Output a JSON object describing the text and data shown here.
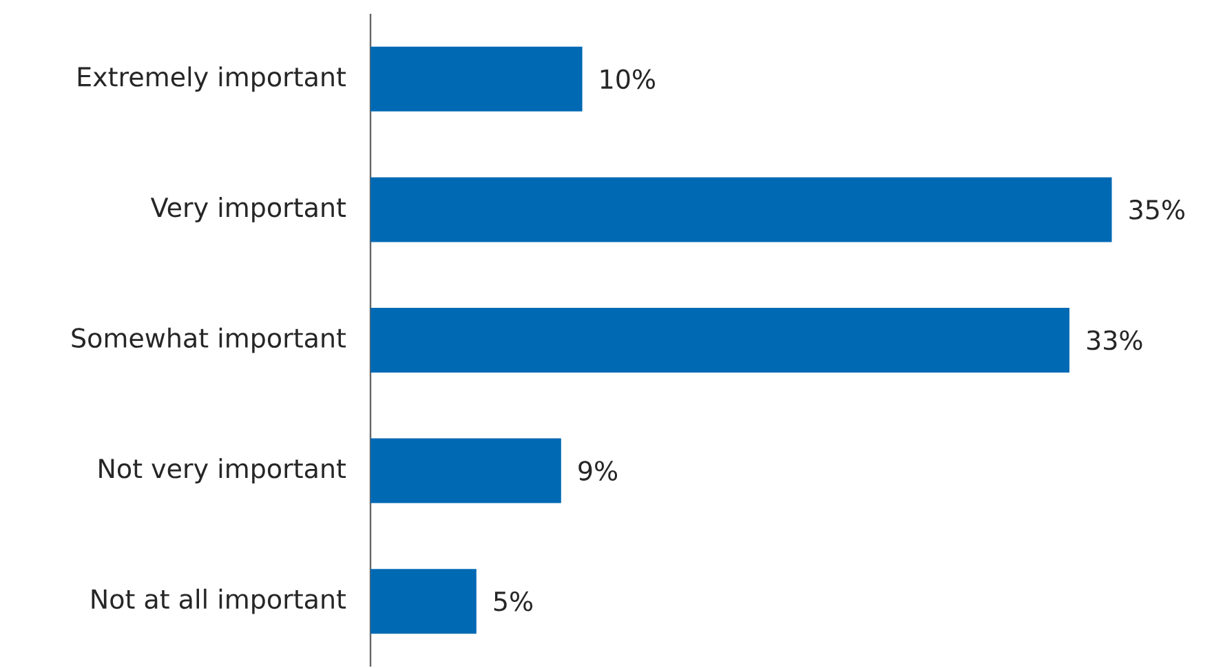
{
  "chart_data": {
    "type": "bar",
    "orientation": "horizontal",
    "categories": [
      "Extremely important",
      "Very important",
      "Somewhat important",
      "Not very important",
      "Not at all important"
    ],
    "values": [
      10,
      35,
      33,
      9,
      5
    ],
    "color": "#0069b4",
    "value_labels": [
      "10%",
      "35%",
      "33%",
      "9%",
      "5%"
    ]
  }
}
